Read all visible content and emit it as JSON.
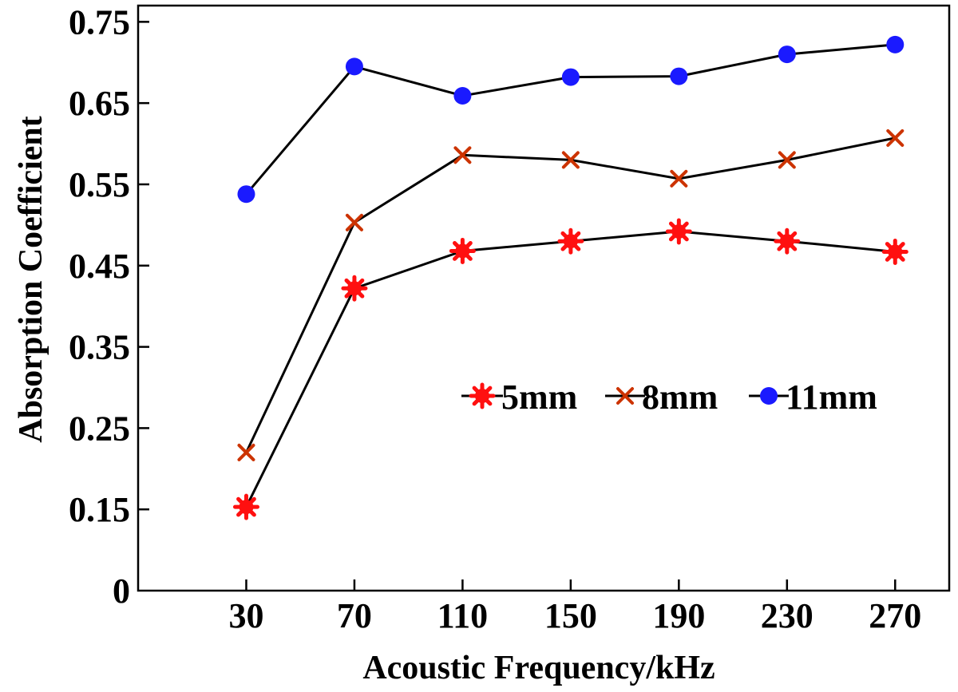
{
  "chart_data": {
    "type": "line",
    "xlabel": "Acoustic Frequency/kHz",
    "ylabel": "Absorption Coefficient",
    "x": [
      30,
      70,
      110,
      150,
      190,
      230,
      270
    ],
    "x_tick_labels": [
      "30",
      "70",
      "110",
      "150",
      "190",
      "230",
      "270"
    ],
    "y_tick_values": [
      0,
      0.15,
      0.25,
      0.35,
      0.45,
      0.55,
      0.65,
      0.75
    ],
    "y_tick_labels": [
      "0",
      "0.15",
      "0.25",
      "0.35",
      "0.45",
      "0.55",
      "0.65",
      "0.75"
    ],
    "xlim": [
      -10,
      290
    ],
    "ylim": [
      0.05,
      0.77
    ],
    "y_axis_break": true,
    "grid": false,
    "legend_position": "center-right",
    "series": [
      {
        "name": "5mm",
        "marker": "asterisk",
        "marker_color": "#ff1010",
        "line_color": "#000000",
        "values": [
          0.153,
          0.422,
          0.468,
          0.48,
          0.492,
          0.48,
          0.467
        ]
      },
      {
        "name": "8mm",
        "marker": "cross",
        "marker_color": "#cc3300",
        "line_color": "#000000",
        "values": [
          0.22,
          0.503,
          0.586,
          0.58,
          0.557,
          0.58,
          0.607
        ]
      },
      {
        "name": "11mm",
        "marker": "circle",
        "marker_color": "#1a1aff",
        "line_color": "#000000",
        "values": [
          0.538,
          0.695,
          0.659,
          0.682,
          0.683,
          0.71,
          0.722
        ]
      }
    ]
  }
}
